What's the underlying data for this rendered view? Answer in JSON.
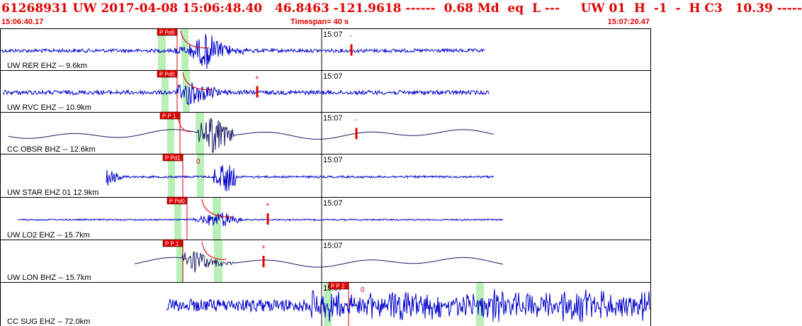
{
  "header": {
    "title": "61268931 UW 2017-04-08 15:06:48.40   46.8463 -121.9618 ------  0.68 Md  eq  L ---     UW 01  H  -1  -  H C3   10.39 -----",
    "start_time": "15:06:40.17",
    "timespan_label": "Timespan=  40 s",
    "end_time": "15:07:20.47"
  },
  "colors": {
    "text_red": "#e00000",
    "pick_red": "#e00000",
    "pick_label_bg": "#e00000",
    "window_green": "#b8f0b8",
    "trace_blue": "#0000cc",
    "trace_navy": "#1a1a66",
    "frame": "#000000"
  },
  "minute_marker": "15:07",
  "panels": [
    {
      "label": "UW RER EHZ -- 9.6km",
      "pick_label": "P Pd0",
      "marker_symbol": "-",
      "style": "blue"
    },
    {
      "label": "UW RVC EHZ -- 10.9km",
      "pick_label": "P Pd0",
      "marker_symbol": "+",
      "style": "blue"
    },
    {
      "label": "CC OBSR BHZ -- 12.6km",
      "pick_label": "P P 1",
      "marker_symbol": "-",
      "style": "navy"
    },
    {
      "label": "UW STAR EHZ 01 12.9km",
      "pick_label": "P Pd1",
      "marker_symbol": "0",
      "style": "blue"
    },
    {
      "label": "UW LO2 EHZ -- 15.7km",
      "pick_label": "P Pd0",
      "marker_symbol": "+",
      "style": "blue"
    },
    {
      "label": "UW LON BHZ -- 15.7km",
      "pick_label": "P P 1",
      "marker_symbol": "+",
      "style": "navy"
    },
    {
      "label": "CC SUG EHZ -- 72.0km",
      "pick_label": "P P 2",
      "marker_symbol": "0",
      "style": "blue"
    }
  ]
}
